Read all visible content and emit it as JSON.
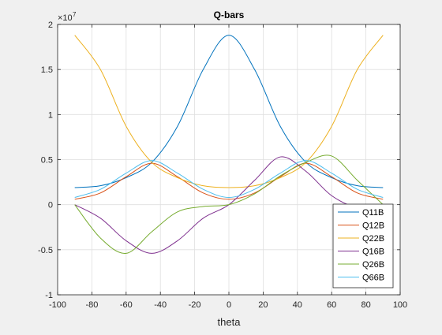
{
  "chart_data": {
    "type": "line",
    "title": "Q-bars",
    "xlabel": "theta",
    "ylabel": "",
    "exponent_label": "×10",
    "exponent_power": "7",
    "xlim": [
      -100,
      100
    ],
    "ylim": [
      -1,
      2
    ],
    "xticks": [
      -100,
      -80,
      -60,
      -40,
      -20,
      0,
      20,
      40,
      60,
      80,
      100
    ],
    "xtick_labels": [
      "-100",
      "-80",
      "-60",
      "-40",
      "-20",
      "0",
      "20",
      "40",
      "60",
      "80",
      "100"
    ],
    "yticks": [
      -1,
      -0.5,
      0,
      0.5,
      1,
      1.5,
      2
    ],
    "ytick_labels": [
      "-1",
      "-0.5",
      "0",
      "0.5",
      "1",
      "1.5",
      "2"
    ],
    "grid": true,
    "legend_position": "bottom-right",
    "background_color": "#f0f0f0",
    "axes_color": "#ffffff",
    "x": [
      -90,
      -75,
      -60,
      -45,
      -30,
      -15,
      0,
      15,
      30,
      45,
      60,
      75,
      90
    ],
    "series": [
      {
        "name": "Q11B",
        "color": "#0072bd",
        "values": [
          0.19,
          0.21,
          0.3,
          0.47,
          0.87,
          1.5,
          1.88,
          1.5,
          0.87,
          0.47,
          0.3,
          0.21,
          0.19
        ]
      },
      {
        "name": "Q12B",
        "color": "#d95319",
        "values": [
          0.06,
          0.13,
          0.31,
          0.46,
          0.31,
          0.13,
          0.06,
          0.13,
          0.31,
          0.46,
          0.31,
          0.13,
          0.06
        ]
      },
      {
        "name": "Q22B",
        "color": "#edb120",
        "values": [
          1.88,
          1.5,
          0.87,
          0.47,
          0.3,
          0.21,
          0.19,
          0.21,
          0.3,
          0.47,
          0.87,
          1.5,
          1.88
        ]
      },
      {
        "name": "Q16B",
        "color": "#7e2f8e",
        "values": [
          0.0,
          -0.15,
          -0.4,
          -0.54,
          -0.4,
          -0.15,
          0.0,
          0.27,
          0.53,
          0.37,
          0.1,
          -0.03,
          0.0
        ]
      },
      {
        "name": "Q26B",
        "color": "#77ac30",
        "values": [
          0.0,
          -0.37,
          -0.54,
          -0.3,
          -0.08,
          -0.02,
          0.0,
          0.12,
          0.32,
          0.47,
          0.54,
          0.27,
          0.0
        ]
      },
      {
        "name": "Q66B",
        "color": "#4dbeee",
        "values": [
          0.08,
          0.17,
          0.35,
          0.49,
          0.35,
          0.17,
          0.08,
          0.17,
          0.35,
          0.49,
          0.35,
          0.17,
          0.08
        ]
      }
    ]
  }
}
